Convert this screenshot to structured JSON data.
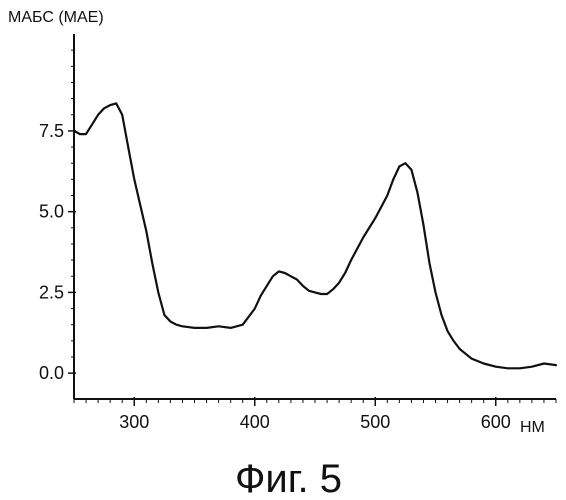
{
  "chart_data": {
    "type": "line",
    "ylabel": "МАБС (МАЕ)",
    "xlabel": "НМ",
    "caption": "Фиг. 5",
    "xlim": [
      250,
      650
    ],
    "ylim": [
      -0.8,
      10.5
    ],
    "x_ticks": [
      300,
      400,
      500,
      600
    ],
    "y_ticks": [
      0.0,
      2.5,
      5.0,
      7.5
    ],
    "y_tick_labels": [
      "0.0",
      "2.5",
      "5.0",
      "7.5"
    ],
    "grid": false,
    "series": [
      {
        "x": [
          250,
          255,
          260,
          265,
          270,
          275,
          280,
          285,
          290,
          295,
          300,
          305,
          310,
          315,
          320,
          325,
          330,
          335,
          340,
          350,
          360,
          370,
          380,
          390,
          400,
          405,
          410,
          415,
          420,
          425,
          430,
          435,
          440,
          445,
          450,
          455,
          460,
          465,
          470,
          475,
          480,
          490,
          500,
          510,
          515,
          520,
          525,
          530,
          535,
          540,
          545,
          550,
          555,
          560,
          565,
          570,
          575,
          580,
          590,
          600,
          610,
          620,
          630,
          640,
          650
        ],
        "y": [
          7.5,
          7.4,
          7.4,
          7.7,
          8.0,
          8.2,
          8.3,
          8.35,
          8.0,
          7.0,
          6.0,
          5.2,
          4.4,
          3.4,
          2.5,
          1.8,
          1.6,
          1.5,
          1.45,
          1.4,
          1.4,
          1.45,
          1.4,
          1.5,
          2.0,
          2.4,
          2.7,
          3.0,
          3.15,
          3.1,
          3.0,
          2.9,
          2.7,
          2.55,
          2.5,
          2.45,
          2.45,
          2.6,
          2.8,
          3.1,
          3.5,
          4.2,
          4.8,
          5.5,
          6.0,
          6.4,
          6.5,
          6.3,
          5.6,
          4.6,
          3.4,
          2.5,
          1.8,
          1.3,
          1.0,
          0.75,
          0.6,
          0.45,
          0.3,
          0.2,
          0.15,
          0.15,
          0.2,
          0.3,
          0.25
        ]
      }
    ]
  }
}
